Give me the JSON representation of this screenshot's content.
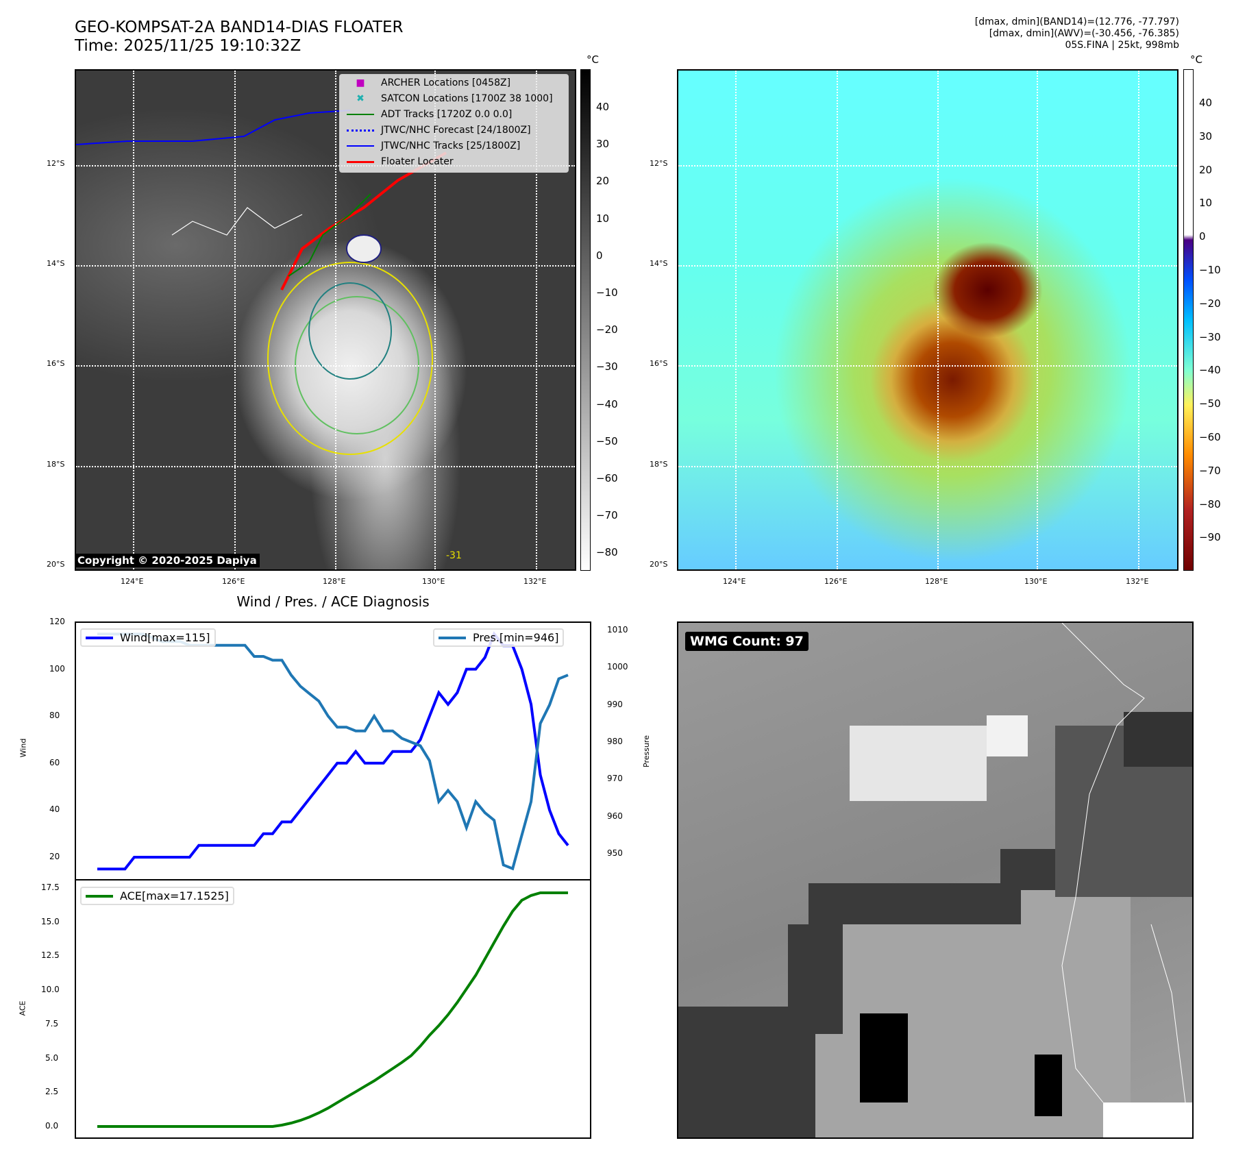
{
  "header": {
    "title_line1": "GEO-KOMPSAT-2A BAND14-DIAS FLOATER",
    "title_line2": "Time: 2025/11/25 19:10:32Z",
    "info_line1": "[dmax, dmin](BAND14)=(12.776, -77.797)",
    "info_line2": "[dmax, dmin](AWV)=(-30.456, -76.385)",
    "info_line3": "05S.FINA | 25kt, 998mb"
  },
  "map": {
    "lat_ticks": [
      "12°S",
      "14°S",
      "16°S",
      "18°S",
      "20°S"
    ],
    "lon_ticks": [
      "124°E",
      "126°E",
      "128°E",
      "130°E",
      "132°E"
    ],
    "copyright": "Copyright © 2020-2025 Dapiya",
    "contour_label": "-31",
    "legend": [
      {
        "label": "ARCHER Locations [0458Z]",
        "color": "#c000c0"
      },
      {
        "label": "SATCON Locations [1700Z 38 1000]",
        "color": "#20b0b0"
      },
      {
        "label": "ADT Tracks [1720Z 0.0 0.0]",
        "color": "#008000"
      },
      {
        "label": "JTWC/NHC Forecast [24/1800Z]",
        "color": "#0000ff"
      },
      {
        "label": "JTWC/NHC Tracks [25/1800Z]",
        "color": "#0000ff"
      },
      {
        "label": "Floater Locater",
        "color": "#ff0000"
      }
    ]
  },
  "colorbar_left": {
    "unit": "°C",
    "ticks": [
      "40",
      "30",
      "20",
      "10",
      "0",
      "−10",
      "−20",
      "−30",
      "−40",
      "−50",
      "−60",
      "−70",
      "−80"
    ]
  },
  "colorbar_right": {
    "unit": "°C",
    "ticks": [
      "40",
      "30",
      "20",
      "10",
      "0",
      "−10",
      "−20",
      "−30",
      "−40",
      "−50",
      "−60",
      "−70",
      "−80",
      "−90"
    ]
  },
  "wmg": {
    "label": "WMG Count: 97"
  },
  "chart_data": [
    {
      "type": "line",
      "title": "Wind / Pres. / ACE Diagnosis",
      "ylabel": "Wind",
      "ylim": [
        10,
        120
      ],
      "yticks": [
        20,
        40,
        60,
        80,
        100,
        120
      ],
      "y2label": "Pressure",
      "y2lim": [
        943,
        1012
      ],
      "y2ticks": [
        950,
        960,
        970,
        980,
        990,
        1000,
        1010
      ],
      "series": [
        {
          "name": "Wind[max=115]",
          "color": "#0000ff",
          "values": [
            15,
            15,
            15,
            15,
            20,
            20,
            20,
            20,
            20,
            20,
            20,
            25,
            25,
            25,
            25,
            25,
            25,
            25,
            30,
            30,
            35,
            35,
            40,
            45,
            50,
            55,
            60,
            60,
            65,
            60,
            60,
            60,
            65,
            65,
            65,
            70,
            80,
            90,
            85,
            90,
            100,
            100,
            105,
            115,
            110,
            110,
            100,
            85,
            55,
            40,
            30,
            25
          ]
        },
        {
          "name": "Pres.[min=946]",
          "color": "#1f77b4",
          "axis": "right",
          "values": [
            1009,
            1009,
            1009,
            1009,
            1009,
            1009,
            1008,
            1007,
            1007,
            1007,
            1006,
            1006,
            1006,
            1006,
            1006,
            1006,
            1006,
            1003,
            1003,
            1002,
            1002,
            998,
            995,
            993,
            991,
            987,
            984,
            984,
            983,
            983,
            987,
            983,
            983,
            981,
            980,
            979,
            975,
            964,
            967,
            964,
            957,
            964,
            961,
            959,
            947,
            946,
            955,
            964,
            985,
            990,
            997,
            998
          ]
        }
      ]
    },
    {
      "type": "line",
      "ylabel": "ACE",
      "ylim": [
        -1,
        17.6
      ],
      "yticks": [
        "0.0",
        "2.5",
        "5.0",
        "7.5",
        "10.0",
        "12.5",
        "15.0",
        "17.5"
      ],
      "series": [
        {
          "name": "ACE[max=17.1525]",
          "color": "#008000",
          "values": [
            0,
            0,
            0,
            0,
            0,
            0,
            0,
            0,
            0,
            0,
            0,
            0,
            0,
            0,
            0,
            0,
            0,
            0,
            0,
            0,
            0.1,
            0.25,
            0.45,
            0.7,
            1.0,
            1.35,
            1.75,
            2.15,
            2.55,
            2.95,
            3.35,
            3.8,
            4.25,
            4.7,
            5.2,
            5.9,
            6.7,
            7.4,
            8.2,
            9.1,
            10.1,
            11.1,
            12.3,
            13.5,
            14.7,
            15.8,
            16.6,
            16.95,
            17.15,
            17.15,
            17.15,
            17.15
          ]
        }
      ]
    }
  ]
}
